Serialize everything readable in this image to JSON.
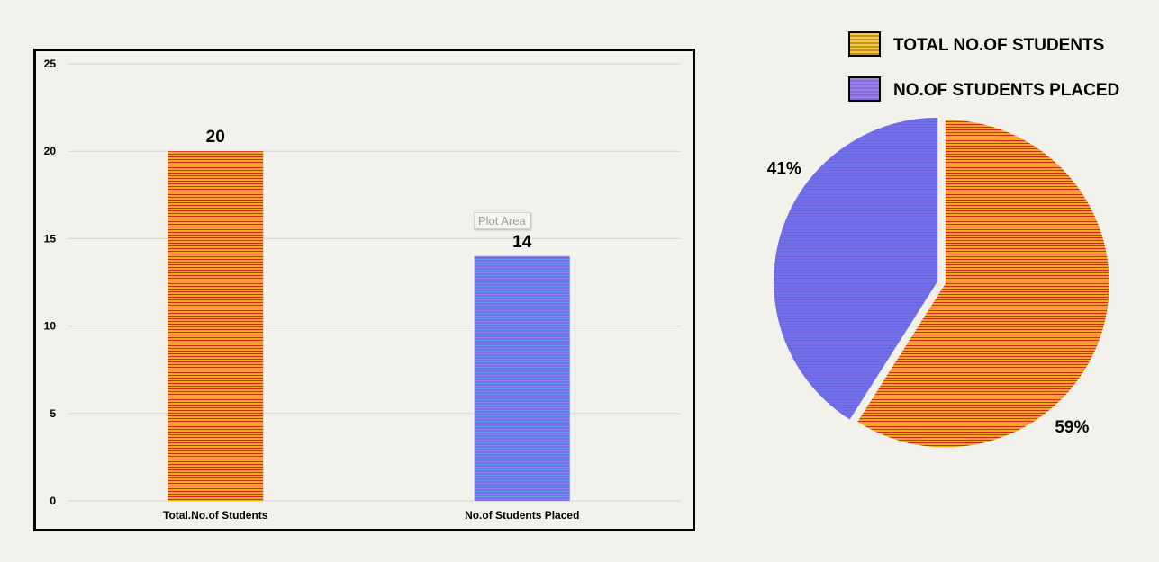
{
  "chart_data": [
    {
      "type": "bar",
      "categories": [
        "Total.No.of Students",
        "No.of Students Placed"
      ],
      "values": [
        20,
        14
      ],
      "data_labels": [
        "20",
        "14"
      ],
      "title": "",
      "xlabel": "",
      "ylabel": "",
      "ylim": [
        0,
        25
      ],
      "yticks": [
        "0",
        "5",
        "10",
        "15",
        "20",
        "25"
      ],
      "grid": true,
      "colors": [
        "#f5a623",
        "#7a6ee6"
      ],
      "stripe_colors": [
        "#d9261c",
        "#5b9bf0"
      ]
    },
    {
      "type": "pie",
      "labels": [
        "TOTAL NO.OF STUDENTS",
        "NO.OF STUDENTS PLACED"
      ],
      "values": [
        59,
        41
      ],
      "data_labels": [
        "59%",
        "41%"
      ],
      "legend": "top-right",
      "colors": [
        "#f5a623",
        "#7a6ee6"
      ],
      "stripe_colors": [
        "#d9261c",
        "#5b6be8"
      ]
    }
  ],
  "tooltip": {
    "text": "Plot Area"
  }
}
